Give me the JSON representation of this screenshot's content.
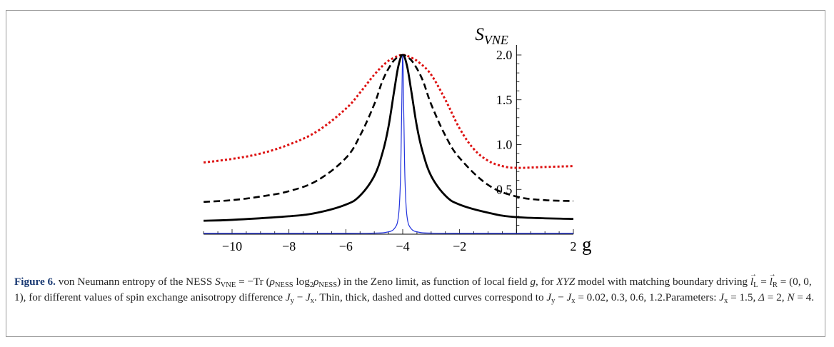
{
  "figure": {
    "label": "Figure 6.",
    "caption": {
      "part1": " von Neumann entropy of the NESS ",
      "s_vne_sym": "S",
      "s_vne_sub": "VNE",
      "eq_part": " = −Tr (",
      "rho": "ρ",
      "ness_sub": "NESS",
      "log_part": " log",
      "log_sub": "2",
      "rho2": "ρ",
      "ness_sub2": "NESS",
      "close_part": ") in the Zeno limit, as function of local field ",
      "g_sym": "g",
      "part2": ", for ",
      "xyz": "XYZ",
      "part3": " model with matching boundary driving ",
      "l_sym": "l",
      "l_sub_L": "L",
      "eq2": " = ",
      "l_sym2": "l",
      "l_sub_R": "R",
      "vector_val": " = (0, 0, 1), for different values of spin exchange anisotropy difference ",
      "jy": "J",
      "jy_sub": "y",
      "minus": " − ",
      "jx": "J",
      "jx_sub": "x",
      "part4": ". Thin, thick, dashed and dotted curves correspond to ",
      "jy2": "J",
      "jy2_sub": "y",
      "minus2": " − ",
      "jx2": "J",
      "jx2_sub": "x",
      "values_part": " = 0.02, 0.3, 0.6, 1.2.",
      "params_label": "Parameters: ",
      "jx3": "J",
      "jx3_sub": "x",
      "jx_val": " = 1.5, ",
      "delta": "Δ",
      "delta_val": " = 2, ",
      "n_sym": "N",
      "n_val": " = 4."
    }
  },
  "chart_data": {
    "type": "line",
    "xlabel": "g",
    "ylabel": "S",
    "ylabel_sub": "VNE",
    "xlim": [
      -11,
      2
    ],
    "ylim": [
      0,
      2.1
    ],
    "x_ticks": [
      -10,
      -8,
      -6,
      -4,
      -2,
      2
    ],
    "x_tick_labels": [
      "−10",
      "−8",
      "−6",
      "−4",
      "−2",
      "2"
    ],
    "y_ticks": [
      0.5,
      1.0,
      1.5,
      2.0
    ],
    "y_tick_labels": [
      "0.5",
      "1.0",
      "1.5",
      "2.0"
    ],
    "peak_x": -4,
    "series": [
      {
        "name": "0.02",
        "style": "thin",
        "color": "#2233dd",
        "x": [
          -11,
          -6,
          -5,
          -4.6,
          -4.3,
          -4.15,
          -4.08,
          -4.04,
          -4.0,
          -3.96,
          -3.92,
          -3.85,
          -3.7,
          -3.4,
          -3,
          -2,
          2
        ],
        "y": [
          0.01,
          0.01,
          0.012,
          0.02,
          0.06,
          0.2,
          0.6,
          1.3,
          1.99,
          1.3,
          0.6,
          0.2,
          0.06,
          0.02,
          0.012,
          0.01,
          0.01
        ]
      },
      {
        "name": "0.3",
        "style": "thick",
        "color": "#000000",
        "x": [
          -11,
          -10,
          -8,
          -7,
          -6,
          -5.5,
          -5,
          -4.7,
          -4.5,
          -4.3,
          -4.15,
          -4.0,
          -3.85,
          -3.7,
          -3.5,
          -3.3,
          -3,
          -2.5,
          -2,
          -1,
          0,
          2
        ],
        "y": [
          0.15,
          0.16,
          0.2,
          0.24,
          0.33,
          0.43,
          0.65,
          0.92,
          1.2,
          1.6,
          1.88,
          2.0,
          1.88,
          1.6,
          1.2,
          0.92,
          0.65,
          0.43,
          0.33,
          0.24,
          0.19,
          0.17
        ]
      },
      {
        "name": "0.6",
        "style": "dashed",
        "color": "#000000",
        "x": [
          -11,
          -10,
          -9,
          -8,
          -7,
          -6,
          -5.5,
          -5,
          -4.7,
          -4.4,
          -4.2,
          -4.0,
          -3.8,
          -3.6,
          -3.3,
          -3,
          -2.5,
          -2,
          -1,
          0,
          1,
          2
        ],
        "y": [
          0.36,
          0.38,
          0.42,
          0.48,
          0.6,
          0.85,
          1.1,
          1.45,
          1.72,
          1.9,
          1.97,
          2.0,
          1.97,
          1.9,
          1.72,
          1.45,
          1.1,
          0.85,
          0.55,
          0.42,
          0.38,
          0.37
        ]
      },
      {
        "name": "1.2",
        "style": "dotted",
        "color": "#dd1111",
        "x": [
          -11,
          -10,
          -9,
          -8,
          -7,
          -6,
          -5.5,
          -5,
          -4.6,
          -4.3,
          -4.0,
          -3.7,
          -3.4,
          -3,
          -2.5,
          -2,
          -1.5,
          -1,
          -0.5,
          0,
          1,
          2
        ],
        "y": [
          0.8,
          0.84,
          0.9,
          1.0,
          1.15,
          1.4,
          1.58,
          1.78,
          1.91,
          1.97,
          2.0,
          1.97,
          1.91,
          1.78,
          1.5,
          1.18,
          0.95,
          0.82,
          0.76,
          0.74,
          0.75,
          0.76
        ]
      }
    ]
  }
}
